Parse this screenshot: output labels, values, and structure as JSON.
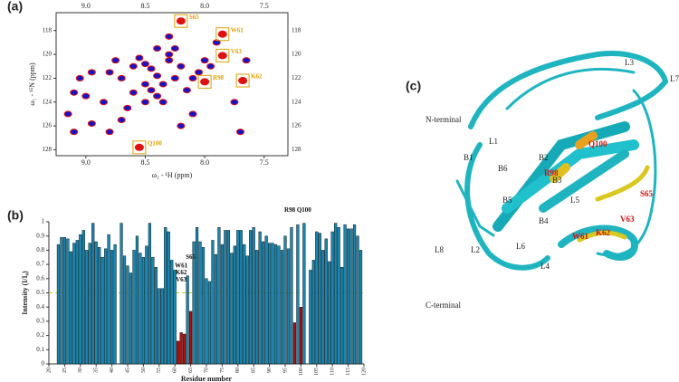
{
  "chart_data": [
    {
      "type": "scatter",
      "panel_label": "(a)",
      "xlabel": "ω₂ - ¹H (ppm)",
      "ylabel": "ω₁ - ¹⁵N (ppm)",
      "xlim": [
        9.25,
        7.3
      ],
      "ylim": [
        128.5,
        116.5
      ],
      "xticks": [
        {
          "value": 9,
          "label": "9.0"
        },
        8.5,
        {
          "value": 8,
          "label": "8.0"
        },
        7.5
      ],
      "yticks": [
        118,
        120,
        122,
        124,
        126,
        128
      ],
      "series": [
        {
          "color": "#e01010",
          "x": [
            8.2,
            7.85,
            7.85,
            7.68,
            8.0,
            8.55
          ],
          "values": [
            117.2,
            118.3,
            120.1,
            122.2,
            122.3,
            127.8
          ]
        },
        {
          "color": "#1414c8",
          "x": [
            9.15,
            9.0,
            8.95,
            8.85,
            8.8,
            8.7,
            8.65,
            8.6,
            8.55,
            8.5,
            8.45,
            8.4,
            8.35,
            8.3,
            8.25,
            8.2,
            8.15,
            8.1,
            8.05,
            8.0,
            7.95,
            7.9,
            8.45,
            8.4,
            8.35,
            8.3,
            8.25,
            8.5,
            8.6,
            8.7,
            8.75,
            9.1,
            9.05,
            8.8,
            8.2,
            8.1,
            7.75,
            7.65,
            7.7,
            8.3,
            8.4,
            8.5,
            9.1,
            8.95
          ],
          "values": [
            125.0,
            123.5,
            125.8,
            124.0,
            121.5,
            122.0,
            124.5,
            121.0,
            120.3,
            120.8,
            121.2,
            121.8,
            122.5,
            120.0,
            122.0,
            121.0,
            123.0,
            122.0,
            121.5,
            120.5,
            121.0,
            119.0,
            123.0,
            123.5,
            124.0,
            120.5,
            119.5,
            122.5,
            123.2,
            125.5,
            120.5,
            126.5,
            122.0,
            126.5,
            126.0,
            125.0,
            124.0,
            120.5,
            126.5,
            118.5,
            119.5,
            124.0,
            123.2,
            121.5
          ]
        }
      ],
      "annotations": [
        {
          "text": "S65",
          "x": 8.2,
          "y": 117.2
        },
        {
          "text": "W61",
          "x": 7.85,
          "y": 118.3
        },
        {
          "text": "V63",
          "x": 7.85,
          "y": 120.1
        },
        {
          "text": "K62",
          "x": 7.68,
          "y": 122.2
        },
        {
          "text": "R98",
          "x": 8.0,
          "y": 122.3
        },
        {
          "text": "Q100",
          "x": 8.55,
          "y": 127.8
        }
      ]
    },
    {
      "type": "bar",
      "panel_label": "(b)",
      "xlabel": "Residue number",
      "ylabel": "Intensity (I/I₀)",
      "xlim": [
        20,
        120
      ],
      "ylim": [
        0,
        1
      ],
      "xticks": [
        20,
        25,
        30,
        35,
        40,
        45,
        50,
        55,
        60,
        65,
        70,
        75,
        80,
        85,
        90,
        95,
        100,
        105,
        110,
        115,
        120
      ],
      "yticks": [
        0,
        0.1,
        0.2,
        0.3,
        0.4,
        0.5,
        0.6,
        0.7,
        0.8,
        0.9,
        1
      ],
      "threshold": 0.5,
      "threshold_color": "#b8d020",
      "series": [
        {
          "color": "#1a86b0",
          "x": [
            23,
            24,
            25,
            26,
            27,
            28,
            29,
            30,
            31,
            32,
            33,
            34,
            35,
            36,
            37,
            38,
            39,
            40,
            41,
            43,
            44,
            45,
            46,
            47,
            48,
            49,
            50,
            51,
            52,
            53,
            54,
            55,
            56,
            57,
            58,
            59,
            60,
            64,
            66,
            67,
            68,
            69,
            70,
            71,
            72,
            73,
            74,
            75,
            76,
            77,
            78,
            79,
            80,
            81,
            82,
            83,
            84,
            85,
            86,
            87,
            88,
            89,
            90,
            91,
            92,
            93,
            94,
            95,
            96,
            97,
            99,
            101,
            103,
            104,
            105,
            106,
            107,
            108,
            109,
            110,
            111,
            112,
            113,
            114,
            115,
            116,
            117,
            118,
            119
          ],
          "values": [
            0.84,
            0.89,
            0.89,
            0.88,
            0.79,
            0.85,
            0.87,
            0.91,
            0.94,
            0.8,
            0.85,
            0.99,
            0.86,
            0.82,
            0.75,
            0.81,
            0.91,
            0.8,
            0.84,
            0.99,
            0.76,
            0.69,
            0.64,
            0.8,
            0.9,
            0.78,
            0.75,
            0.83,
            0.99,
            0.75,
            0.68,
            0.53,
            0.53,
            0.96,
            0.93,
            0.73,
            0.66,
            0.62,
            0.86,
            0.96,
            0.86,
            0.82,
            0.6,
            0.58,
            0.87,
            0.77,
            0.96,
            0.84,
            0.94,
            0.94,
            0.78,
            0.83,
            0.94,
            0.94,
            0.84,
            0.76,
            0.94,
            0.96,
            0.8,
            0.93,
            0.86,
            0.9,
            0.85,
            0.85,
            0.84,
            0.83,
            0.8,
            0.9,
            0.81,
            0.96,
            0.98,
            0.99,
            0.66,
            0.73,
            0.93,
            0.92,
            0.8,
            0.88,
            0.72,
            0.93,
            0.99,
            0.96,
            0.68,
            0.98,
            0.95,
            0.95,
            0.98,
            0.9,
            0.8
          ]
        },
        {
          "color": "#b01010",
          "x": [
            61,
            62,
            63,
            65,
            98,
            100
          ],
          "values": [
            0.16,
            0.22,
            0.21,
            0.37,
            0.29,
            0.4
          ]
        }
      ],
      "annotations": [
        {
          "text": "R98 Q100",
          "x": 99,
          "y": 1.08
        },
        {
          "text": "S65",
          "x": 65,
          "y": 0.75
        },
        {
          "text": "W61",
          "x": 62,
          "y": 0.69
        },
        {
          "text": "K62",
          "x": 62,
          "y": 0.64
        },
        {
          "text": "V63",
          "x": 62,
          "y": 0.59
        }
      ]
    }
  ],
  "structure": {
    "panel_label": "(c)",
    "labels": [
      "L3",
      "L7",
      "N-terminal",
      "L1",
      "B1",
      "B6",
      "B2",
      "Q100",
      "R98",
      "B3",
      "L5",
      "S65",
      "B5",
      "B4",
      "V63",
      "L6",
      "W61",
      "K62",
      "L8",
      "L2",
      "L4",
      "C-terminal"
    ]
  }
}
